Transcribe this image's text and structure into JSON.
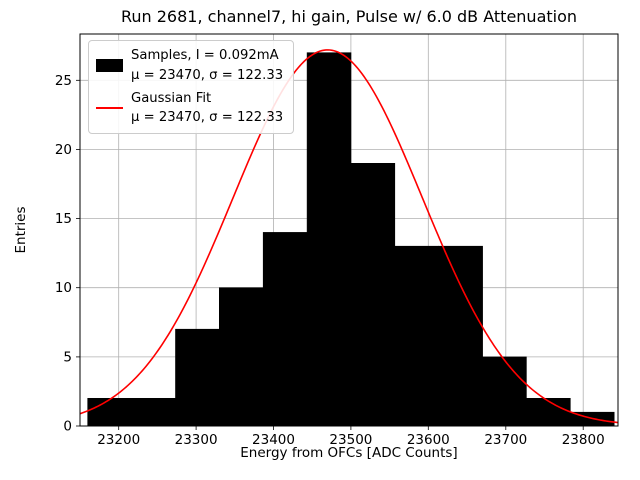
{
  "figure": {
    "title": "Run 2681, channel7, hi gain, Pulse w/ 6.0 dB Attenuation",
    "xlabel": "Energy from OFCs [ADC Counts]",
    "ylabel": "Entries"
  },
  "legend": {
    "position": "upper left",
    "entries": [
      {
        "marker": "black-patch",
        "label": "Samples, I = 0.092mA",
        "stats": "μ = 23470, σ = 122.33"
      },
      {
        "marker": "red-line",
        "label": "Gaussian Fit",
        "stats": "μ = 23470, σ = 122.33"
      }
    ]
  },
  "colors": {
    "histogram": "#000000",
    "fit_line": "#ff0000",
    "grid": "#b0b0b0",
    "axes": "#000000",
    "background": "#ffffff"
  },
  "chart_data": {
    "type": "bar",
    "subtype": "histogram-with-gaussian-fit",
    "title": "Run 2681, channel7, hi gain, Pulse w/ 6.0 dB Attenuation",
    "xlabel": "Energy from OFCs [ADC Counts]",
    "ylabel": "Entries",
    "xlim": [
      23150,
      23845
    ],
    "ylim": [
      0,
      28.35
    ],
    "x_ticks": [
      23200,
      23300,
      23400,
      23500,
      23600,
      23700,
      23800
    ],
    "y_ticks": [
      0,
      5,
      10,
      15,
      20,
      25
    ],
    "grid": true,
    "legend_position": "upper left",
    "histogram": {
      "series_name": "Samples, I = 0.092mA",
      "mu": 23470,
      "sigma": 122.33,
      "bin_edges": [
        23160,
        23216.67,
        23273.33,
        23330,
        23386.67,
        23443.33,
        23500,
        23556.67,
        23613.33,
        23670,
        23726.67,
        23783.33,
        23840
      ],
      "counts": [
        2,
        2,
        7,
        10,
        14,
        27,
        19,
        13,
        13,
        5,
        2,
        1
      ],
      "total_entries": 115,
      "color": "#000000"
    },
    "gaussian_fit": {
      "series_name": "Gaussian Fit",
      "mu": 23470,
      "sigma": 122.33,
      "amplitude": 27.2,
      "color": "#ff0000"
    }
  }
}
